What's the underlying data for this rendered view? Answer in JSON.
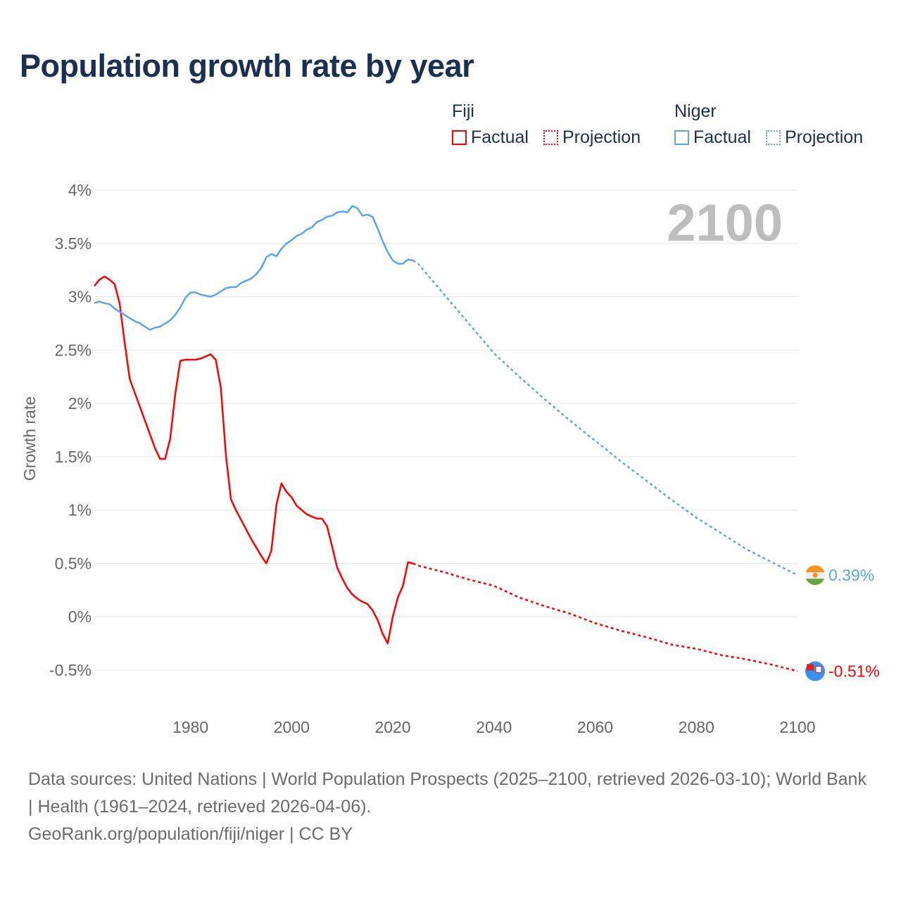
{
  "title": "Population growth rate by year",
  "legend": {
    "groups": [
      {
        "name": "Fiji",
        "color": "#ff0000",
        "items": [
          "Factual",
          "Projection"
        ]
      },
      {
        "name": "Niger",
        "color": "#5aa5ea",
        "items": [
          "Factual",
          "Projection"
        ]
      }
    ]
  },
  "year_display": "2100",
  "footer": {
    "line1": "Data sources: United Nations | World Population Prospects (2025–2100, retrieved 2026-03-10); World Bank | Health (1961–2024, retrieved 2026-04-06).",
    "line2": "GeoRank.org/population/fiji/niger | CC BY"
  },
  "chart_data": {
    "type": "line",
    "title": "Population growth rate by year",
    "xlabel": "",
    "ylabel": "Growth rate",
    "xlim": [
      1961,
      2100
    ],
    "ylim": [
      -0.5,
      4
    ],
    "x_ticks": [
      1980,
      2000,
      2020,
      2040,
      2060,
      2080,
      2100
    ],
    "y_ticks": [
      -0.5,
      0,
      0.5,
      1,
      1.5,
      2,
      2.5,
      3,
      3.5,
      4
    ],
    "y_tick_labels": [
      "-0.5%",
      "0%",
      "0.5%",
      "1%",
      "1.5%",
      "2%",
      "2.5%",
      "3%",
      "3.5%",
      "4%"
    ],
    "grid": true,
    "legend_position": "top-right",
    "series": [
      {
        "name": "Fiji",
        "kind": "Factual",
        "color": "#ff0000",
        "style": "solid",
        "x": [
          1961,
          1962,
          1963,
          1964,
          1965,
          1966,
          1967,
          1968,
          1969,
          1970,
          1971,
          1972,
          1973,
          1974,
          1975,
          1976,
          1977,
          1978,
          1979,
          1980,
          1981,
          1982,
          1983,
          1984,
          1985,
          1986,
          1987,
          1988,
          1989,
          1990,
          1991,
          1992,
          1993,
          1994,
          1995,
          1996,
          1997,
          1998,
          1999,
          2000,
          2001,
          2002,
          2003,
          2004,
          2005,
          2006,
          2007,
          2008,
          2009,
          2010,
          2011,
          2012,
          2013,
          2014,
          2015,
          2016,
          2017,
          2018,
          2019,
          2020,
          2021,
          2022,
          2023,
          2024
        ],
        "y": [
          3.1,
          3.16,
          3.19,
          3.16,
          3.12,
          2.94,
          2.57,
          2.23,
          2.1,
          1.97,
          1.84,
          1.71,
          1.58,
          1.48,
          1.48,
          1.67,
          2.09,
          2.4,
          2.41,
          2.41,
          2.41,
          2.42,
          2.44,
          2.46,
          2.41,
          2.15,
          1.52,
          1.1,
          1.0,
          0.91,
          0.82,
          0.73,
          0.65,
          0.57,
          0.5,
          0.62,
          1.05,
          1.25,
          1.17,
          1.12,
          1.04,
          1.0,
          0.96,
          0.94,
          0.92,
          0.92,
          0.85,
          0.66,
          0.46,
          0.36,
          0.27,
          0.21,
          0.17,
          0.14,
          0.12,
          0.06,
          -0.03,
          -0.16,
          -0.25,
          0.0,
          0.18,
          0.29,
          0.51,
          0.5
        ]
      },
      {
        "name": "Fiji",
        "kind": "Projection",
        "color": "#ff0000",
        "style": "dotted",
        "x": [
          2024,
          2025,
          2030,
          2035,
          2040,
          2045,
          2050,
          2055,
          2060,
          2065,
          2070,
          2075,
          2080,
          2085,
          2090,
          2095,
          2100
        ],
        "y": [
          0.5,
          0.48,
          0.42,
          0.35,
          0.29,
          0.18,
          0.1,
          0.03,
          -0.06,
          -0.13,
          -0.19,
          -0.26,
          -0.3,
          -0.36,
          -0.4,
          -0.45,
          -0.51
        ]
      },
      {
        "name": "Niger",
        "kind": "Factual",
        "color": "#5aa5ea",
        "style": "solid",
        "x": [
          1961,
          1962,
          1963,
          1964,
          1965,
          1966,
          1967,
          1968,
          1969,
          1970,
          1971,
          1972,
          1973,
          1974,
          1975,
          1976,
          1977,
          1978,
          1979,
          1980,
          1981,
          1982,
          1983,
          1984,
          1985,
          1986,
          1987,
          1988,
          1989,
          1990,
          1991,
          1992,
          1993,
          1994,
          1995,
          1996,
          1997,
          1998,
          1999,
          2000,
          2001,
          2002,
          2003,
          2004,
          2005,
          2006,
          2007,
          2008,
          2009,
          2010,
          2011,
          2012,
          2013,
          2014,
          2015,
          2016,
          2017,
          2018,
          2019,
          2020,
          2021,
          2022,
          2023,
          2024
        ],
        "y": [
          2.94,
          2.955,
          2.94,
          2.93,
          2.89,
          2.86,
          2.83,
          2.8,
          2.77,
          2.75,
          2.72,
          2.69,
          2.71,
          2.72,
          2.75,
          2.78,
          2.83,
          2.9,
          2.99,
          3.04,
          3.04,
          3.02,
          3.01,
          3.0,
          3.02,
          3.05,
          3.08,
          3.09,
          3.09,
          3.13,
          3.15,
          3.17,
          3.21,
          3.27,
          3.37,
          3.4,
          3.38,
          3.45,
          3.5,
          3.53,
          3.57,
          3.59,
          3.63,
          3.65,
          3.7,
          3.72,
          3.75,
          3.76,
          3.79,
          3.8,
          3.79,
          3.85,
          3.83,
          3.76,
          3.77,
          3.75,
          3.64,
          3.52,
          3.42,
          3.34,
          3.31,
          3.31,
          3.35,
          3.34
        ]
      },
      {
        "name": "Niger",
        "kind": "Projection",
        "color": "#5aa5ea",
        "style": "dotted",
        "x": [
          2024,
          2025,
          2030,
          2035,
          2040,
          2045,
          2050,
          2055,
          2060,
          2065,
          2070,
          2075,
          2080,
          2085,
          2090,
          2095,
          2100
        ],
        "y": [
          3.34,
          3.31,
          3.03,
          2.75,
          2.47,
          2.25,
          2.04,
          1.84,
          1.65,
          1.46,
          1.28,
          1.1,
          0.93,
          0.78,
          0.63,
          0.51,
          0.39
        ]
      }
    ],
    "end_labels": [
      {
        "name": "Niger",
        "value": 0.39,
        "label": "0.39%",
        "color": "#5aa5ea"
      },
      {
        "name": "Fiji",
        "value": -0.51,
        "label": "-0.51%",
        "color": "#ff0000"
      }
    ]
  }
}
